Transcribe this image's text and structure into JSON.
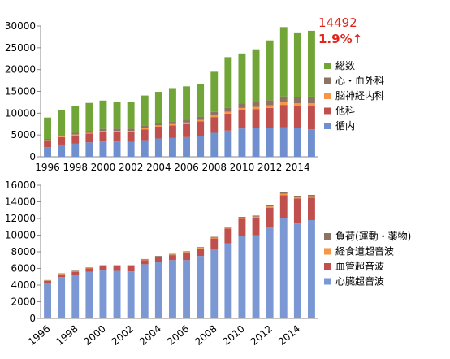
{
  "annotation": {
    "value": "14492",
    "growth": "1.9%↑"
  },
  "chart_data": [
    {
      "type": "bar",
      "stacked": true,
      "title": "",
      "x": [
        1996,
        1997,
        1998,
        1999,
        2000,
        2001,
        2002,
        2003,
        2004,
        2005,
        2006,
        2007,
        2008,
        2009,
        2010,
        2011,
        2012,
        2013,
        2014,
        2015
      ],
      "x_tick_labels": [
        "1996",
        "1998",
        "2000",
        "2002",
        "2004",
        "2006",
        "2008",
        "2010",
        "2012",
        "2014"
      ],
      "ylim": [
        0,
        30000
      ],
      "y_ticks": [
        0,
        5000,
        10000,
        15000,
        20000,
        25000,
        30000
      ],
      "legend_position": "right",
      "series": [
        {
          "name": "循内",
          "color": "#6f8fcf",
          "values": [
            2200,
            2800,
            3000,
            3300,
            3500,
            3500,
            3400,
            3800,
            4200,
            4300,
            4500,
            4800,
            5500,
            6000,
            6500,
            6600,
            6700,
            6800,
            6600,
            6300
          ]
        },
        {
          "name": "他科",
          "color": "#c0504d",
          "values": [
            1500,
            1700,
            1900,
            2000,
            2200,
            2200,
            2300,
            2500,
            2700,
            2900,
            3000,
            3300,
            3600,
            3900,
            4200,
            4300,
            4500,
            5100,
            5000,
            5300
          ]
        },
        {
          "name": "脳神経内科",
          "color": "#f79646",
          "values": [
            100,
            150,
            200,
            200,
            250,
            250,
            250,
            300,
            300,
            300,
            350,
            350,
            400,
            450,
            500,
            550,
            600,
            650,
            650,
            700
          ]
        },
        {
          "name": "心・血外科",
          "color": "#8c7362",
          "values": [
            300,
            350,
            400,
            450,
            450,
            500,
            500,
            550,
            600,
            650,
            700,
            750,
            800,
            900,
            1000,
            1100,
            1200,
            1300,
            1400,
            1500
          ]
        },
        {
          "name": "総数",
          "color": "#72a538",
          "values": [
            4900,
            5800,
            6100,
            6400,
            6500,
            6100,
            6100,
            6900,
            7100,
            7600,
            7600,
            7500,
            9200,
            11600,
            11500,
            12100,
            13700,
            15900,
            14700,
            15100
          ]
        }
      ]
    },
    {
      "type": "bar",
      "stacked": true,
      "title": "",
      "x": [
        1996,
        1997,
        1998,
        1999,
        2000,
        2001,
        2002,
        2003,
        2004,
        2005,
        2006,
        2007,
        2008,
        2009,
        2010,
        2011,
        2012,
        2013,
        2014,
        2015
      ],
      "x_tick_labels": [
        "1996",
        "1998",
        "2000",
        "2002",
        "2004",
        "2006",
        "2008",
        "2010",
        "2012",
        "2014"
      ],
      "ylim": [
        0,
        16000
      ],
      "y_ticks": [
        0,
        2000,
        4000,
        6000,
        8000,
        10000,
        12000,
        14000,
        16000
      ],
      "legend_position": "right",
      "series": [
        {
          "name": "心臓超音波",
          "color": "#7b98d4",
          "values": [
            4200,
            4950,
            5200,
            5600,
            5750,
            5700,
            5650,
            6500,
            6750,
            7000,
            7000,
            7500,
            8300,
            9000,
            9850,
            10000,
            11000,
            12000,
            11400,
            11800
          ]
        },
        {
          "name": "血管超音波",
          "color": "#c0504d",
          "values": [
            300,
            350,
            400,
            400,
            500,
            550,
            600,
            500,
            600,
            600,
            900,
            900,
            1300,
            1800,
            2100,
            2100,
            2300,
            2800,
            3000,
            2700
          ]
        },
        {
          "name": "経食道超音波",
          "color": "#f79646",
          "values": [
            50,
            60,
            60,
            60,
            70,
            70,
            70,
            70,
            70,
            70,
            80,
            80,
            100,
            100,
            120,
            130,
            150,
            180,
            180,
            180
          ]
        },
        {
          "name": "負荷(運動・薬物)",
          "color": "#8c7362",
          "values": [
            50,
            50,
            60,
            60,
            60,
            60,
            60,
            60,
            80,
            80,
            80,
            80,
            100,
            100,
            120,
            120,
            150,
            150,
            150,
            150
          ]
        }
      ]
    }
  ]
}
